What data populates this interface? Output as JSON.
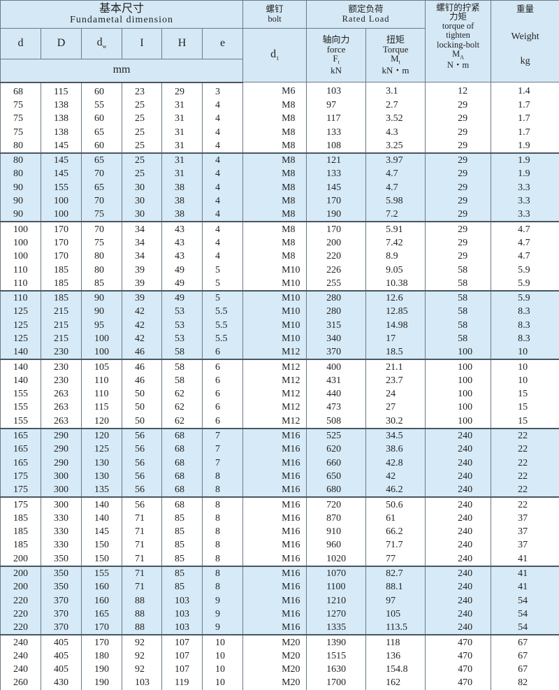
{
  "header": {
    "fundamental_cn": "基本尺寸",
    "fundamental_en": "Fundametal dimension",
    "bolt_cn": "螺钉",
    "bolt_en": "bolt",
    "rated_cn": "额定负荷",
    "rated_en": "Rated Load",
    "torque_cn_1": "螺钉的拧紧",
    "torque_cn_2": "力矩",
    "torque_en_1": "torque of",
    "torque_en_2": "tighten",
    "torque_en_3": "locking-bolt",
    "torque_sym": "M",
    "torque_sym_sub": "A",
    "torque_unit": "N・m",
    "weight_cn": "重量",
    "weight_en": "Weight",
    "weight_unit": "kg",
    "dims": [
      {
        "base": "d",
        "sub": ""
      },
      {
        "base": "D",
        "sub": ""
      },
      {
        "base": "d",
        "sub": "w"
      },
      {
        "base": "I",
        "sub": ""
      },
      {
        "base": "H",
        "sub": ""
      },
      {
        "base": "e",
        "sub": ""
      }
    ],
    "dim_unit": "mm",
    "bolt_sym": "d",
    "bolt_sym_sub": "1",
    "force_cn": "轴向力",
    "force_en": "force",
    "force_sym": "F",
    "force_sym_sub": "t",
    "force_unit": "kN",
    "tq_cn": "扭矩",
    "tq_en": "Torque",
    "tq_sym": "M",
    "tq_sym_sub": "t",
    "tq_unit": "kN・m"
  },
  "colors": {
    "header_bg": "#d5e8f5",
    "shaded_bg": "#d6eaf7"
  },
  "groups": [
    {
      "shaded": false,
      "rows": [
        [
          "68",
          "115",
          "60",
          "23",
          "29",
          "3",
          "M6",
          "103",
          "3.1",
          "12",
          "1.4"
        ],
        [
          "75",
          "138",
          "55",
          "25",
          "31",
          "4",
          "M8",
          "97",
          "2.7",
          "29",
          "1.7"
        ],
        [
          "75",
          "138",
          "60",
          "25",
          "31",
          "4",
          "M8",
          "117",
          "3.52",
          "29",
          "1.7"
        ],
        [
          "75",
          "138",
          "65",
          "25",
          "31",
          "4",
          "M8",
          "133",
          "4.3",
          "29",
          "1.7"
        ],
        [
          "80",
          "145",
          "60",
          "25",
          "31",
          "4",
          "M8",
          "108",
          "3.25",
          "29",
          "1.9"
        ]
      ]
    },
    {
      "shaded": true,
      "rows": [
        [
          "80",
          "145",
          "65",
          "25",
          "31",
          "4",
          "M8",
          "121",
          "3.97",
          "29",
          "1.9"
        ],
        [
          "80",
          "145",
          "70",
          "25",
          "31",
          "4",
          "M8",
          "133",
          "4.7",
          "29",
          "1.9"
        ],
        [
          "90",
          "155",
          "65",
          "30",
          "38",
          "4",
          "M8",
          "145",
          "4.7",
          "29",
          "3.3"
        ],
        [
          "90",
          "100",
          "70",
          "30",
          "38",
          "4",
          "M8",
          "170",
          "5.98",
          "29",
          "3.3"
        ],
        [
          "90",
          "100",
          "75",
          "30",
          "38",
          "4",
          "M8",
          "190",
          "7.2",
          "29",
          "3.3"
        ]
      ]
    },
    {
      "shaded": false,
      "rows": [
        [
          "100",
          "170",
          "70",
          "34",
          "43",
          "4",
          "M8",
          "170",
          "5.91",
          "29",
          "4.7"
        ],
        [
          "100",
          "170",
          "75",
          "34",
          "43",
          "4",
          "M8",
          "200",
          "7.42",
          "29",
          "4.7"
        ],
        [
          "100",
          "170",
          "80",
          "34",
          "43",
          "4",
          "M8",
          "220",
          "8.9",
          "29",
          "4.7"
        ],
        [
          "110",
          "185",
          "80",
          "39",
          "49",
          "5",
          "M10",
          "226",
          "9.05",
          "58",
          "5.9"
        ],
        [
          "110",
          "185",
          "85",
          "39",
          "49",
          "5",
          "M10",
          "255",
          "10.38",
          "58",
          "5.9"
        ]
      ]
    },
    {
      "shaded": true,
      "rows": [
        [
          "110",
          "185",
          "90",
          "39",
          "49",
          "5",
          "M10",
          "280",
          "12.6",
          "58",
          "5.9"
        ],
        [
          "125",
          "215",
          "90",
          "42",
          "53",
          "5.5",
          "M10",
          "280",
          "12.85",
          "58",
          "8.3"
        ],
        [
          "125",
          "215",
          "95",
          "42",
          "53",
          "5.5",
          "M10",
          "315",
          "14.98",
          "58",
          "8.3"
        ],
        [
          "125",
          "215",
          "100",
          "42",
          "53",
          "5.5",
          "M10",
          "340",
          "17",
          "58",
          "8.3"
        ],
        [
          "140",
          "230",
          "100",
          "46",
          "58",
          "6",
          "M12",
          "370",
          "18.5",
          "100",
          "10"
        ]
      ]
    },
    {
      "shaded": false,
      "rows": [
        [
          "140",
          "230",
          "105",
          "46",
          "58",
          "6",
          "M12",
          "400",
          "21.1",
          "100",
          "10"
        ],
        [
          "140",
          "230",
          "110",
          "46",
          "58",
          "6",
          "M12",
          "431",
          "23.7",
          "100",
          "10"
        ],
        [
          "155",
          "263",
          "110",
          "50",
          "62",
          "6",
          "M12",
          "440",
          "24",
          "100",
          "15"
        ],
        [
          "155",
          "263",
          "115",
          "50",
          "62",
          "6",
          "M12",
          "473",
          "27",
          "100",
          "15"
        ],
        [
          "155",
          "263",
          "120",
          "50",
          "62",
          "6",
          "M12",
          "508",
          "30.2",
          "100",
          "15"
        ]
      ]
    },
    {
      "shaded": true,
      "rows": [
        [
          "165",
          "290",
          "120",
          "56",
          "68",
          "7",
          "M16",
          "525",
          "34.5",
          "240",
          "22"
        ],
        [
          "165",
          "290",
          "125",
          "56",
          "68",
          "7",
          "M16",
          "620",
          "38.6",
          "240",
          "22"
        ],
        [
          "165",
          "290",
          "130",
          "56",
          "68",
          "7",
          "M16",
          "660",
          "42.8",
          "240",
          "22"
        ],
        [
          "175",
          "300",
          "130",
          "56",
          "68",
          "8",
          "M16",
          "650",
          "42",
          "240",
          "22"
        ],
        [
          "175",
          "300",
          "135",
          "56",
          "68",
          "8",
          "M16",
          "680",
          "46.2",
          "240",
          "22"
        ]
      ]
    },
    {
      "shaded": false,
      "rows": [
        [
          "175",
          "300",
          "140",
          "56",
          "68",
          "8",
          "M16",
          "720",
          "50.6",
          "240",
          "22"
        ],
        [
          "185",
          "330",
          "140",
          "71",
          "85",
          "8",
          "M16",
          "870",
          "61",
          "240",
          "37"
        ],
        [
          "185",
          "330",
          "145",
          "71",
          "85",
          "8",
          "M16",
          "910",
          "66.2",
          "240",
          "37"
        ],
        [
          "185",
          "330",
          "150",
          "71",
          "85",
          "8",
          "M16",
          "960",
          "71.7",
          "240",
          "37"
        ],
        [
          "200",
          "350",
          "150",
          "71",
          "85",
          "8",
          "M16",
          "1020",
          "77",
          "240",
          "41"
        ]
      ]
    },
    {
      "shaded": true,
      "rows": [
        [
          "200",
          "350",
          "155",
          "71",
          "85",
          "8",
          "M16",
          "1070",
          "82.7",
          "240",
          "41"
        ],
        [
          "200",
          "350",
          "160",
          "71",
          "85",
          "8",
          "M16",
          "1100",
          "88.1",
          "240",
          "41"
        ],
        [
          "220",
          "370",
          "160",
          "88",
          "103",
          "9",
          "M16",
          "1210",
          "97",
          "240",
          "54"
        ],
        [
          "220",
          "370",
          "165",
          "88",
          "103",
          "9",
          "M16",
          "1270",
          "105",
          "240",
          "54"
        ],
        [
          "220",
          "370",
          "170",
          "88",
          "103",
          "9",
          "M16",
          "1335",
          "113.5",
          "240",
          "54"
        ]
      ]
    },
    {
      "shaded": false,
      "rows": [
        [
          "240",
          "405",
          "170",
          "92",
          "107",
          "10",
          "M20",
          "1390",
          "118",
          "470",
          "67"
        ],
        [
          "240",
          "405",
          "180",
          "92",
          "107",
          "10",
          "M20",
          "1515",
          "136",
          "470",
          "67"
        ],
        [
          "240",
          "405",
          "190",
          "92",
          "107",
          "10",
          "M20",
          "1630",
          "154.8",
          "470",
          "67"
        ],
        [
          "260",
          "430",
          "190",
          "103",
          "119",
          "10",
          "M20",
          "1700",
          "162",
          "470",
          "82"
        ]
      ]
    }
  ]
}
